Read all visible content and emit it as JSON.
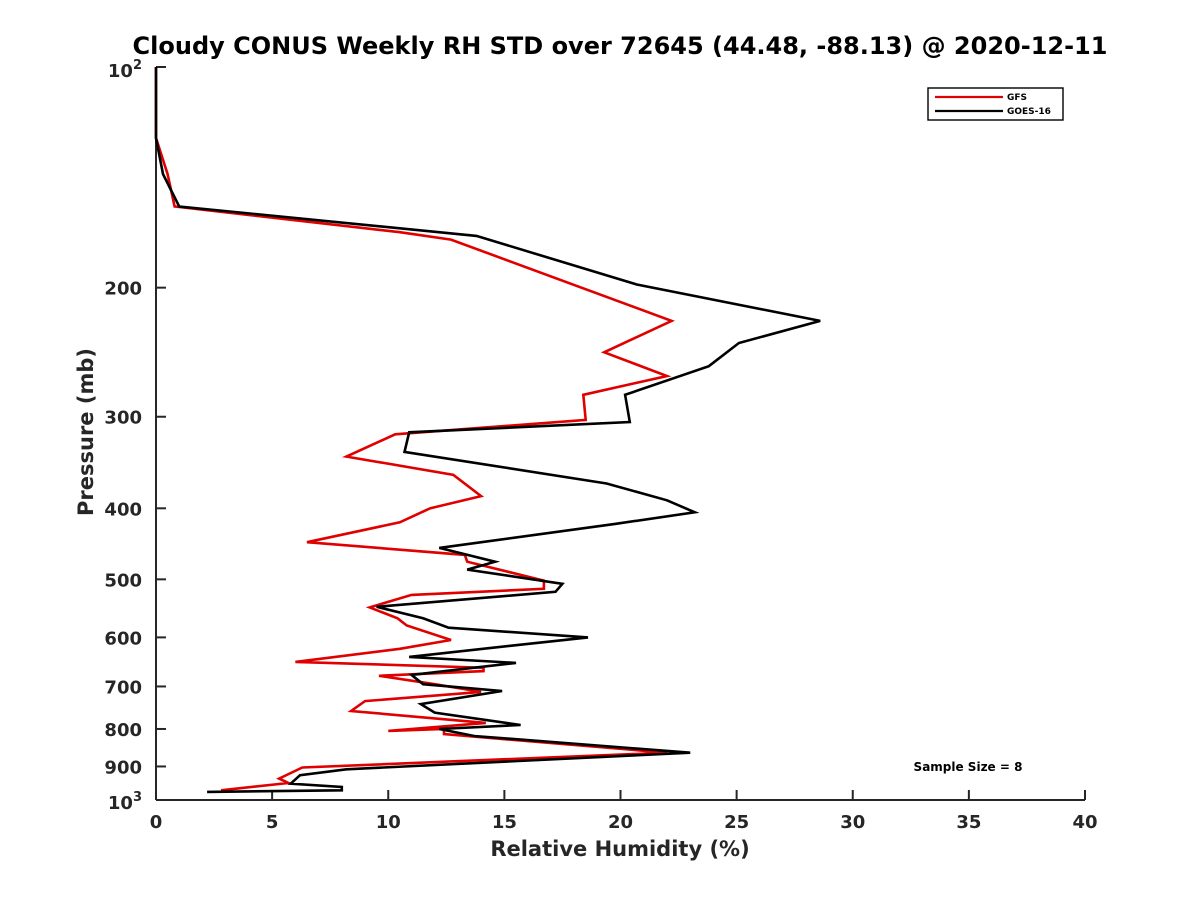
{
  "chart_data": {
    "type": "line",
    "title": "Cloudy CONUS Weekly RH STD over 72645 (44.48, -88.13) @ 2020-12-11",
    "xlabel": "Relative Humidity (%)",
    "ylabel": "Pressure (mb)",
    "xlim": [
      0,
      40
    ],
    "ylim": [
      100,
      1000
    ],
    "y_scale": "log",
    "y_reversed": true,
    "x_ticks": [
      "0",
      "5",
      "10",
      "15",
      "20",
      "25",
      "30",
      "35",
      "40"
    ],
    "x_tick_values": [
      0,
      5,
      10,
      15,
      20,
      25,
      30,
      35,
      40
    ],
    "y_ticks": [
      "200",
      "300",
      "400",
      "500",
      "600",
      "700",
      "800",
      "900"
    ],
    "y_tick_values": [
      200,
      300,
      400,
      500,
      600,
      700,
      800,
      900
    ],
    "y_top_label_base": "10",
    "y_top_label_exp": "2",
    "y_bottom_label_base": "10",
    "y_bottom_label_exp": "3",
    "grid": false,
    "legend_position": "top-right",
    "annotation": "Sample Size = 8",
    "series": [
      {
        "name": "GFS",
        "color": "#e00000",
        "points": [
          [
            0,
            100
          ],
          [
            0,
            125
          ],
          [
            0.5,
            140
          ],
          [
            0.8,
            155
          ],
          [
            10.5,
            168
          ],
          [
            12.7,
            172
          ],
          [
            22.2,
            222
          ],
          [
            19.3,
            245
          ],
          [
            22.0,
            264
          ],
          [
            18.4,
            280
          ],
          [
            18.5,
            303
          ],
          [
            10.3,
            317
          ],
          [
            8.2,
            340
          ],
          [
            12.8,
            360
          ],
          [
            14.0,
            385
          ],
          [
            11.8,
            400
          ],
          [
            10.5,
            418
          ],
          [
            6.5,
            445
          ],
          [
            13.3,
            463
          ],
          [
            13.4,
            473
          ],
          [
            16.7,
            502
          ],
          [
            16.7,
            515
          ],
          [
            11.0,
            525
          ],
          [
            9.2,
            546
          ],
          [
            10.4,
            565
          ],
          [
            10.8,
            578
          ],
          [
            12.7,
            605
          ],
          [
            10.5,
            622
          ],
          [
            6.0,
            648
          ],
          [
            14.1,
            660
          ],
          [
            14.1,
            667
          ],
          [
            9.6,
            677
          ],
          [
            12.0,
            695
          ],
          [
            14.0,
            712
          ],
          [
            9.0,
            733
          ],
          [
            8.4,
            756
          ],
          [
            14.2,
            785
          ],
          [
            10.0,
            805
          ],
          [
            12.4,
            800
          ],
          [
            12.4,
            813
          ],
          [
            22.0,
            862
          ],
          [
            6.3,
            903
          ],
          [
            5.3,
            935
          ],
          [
            5.7,
            948
          ],
          [
            2.8,
            970
          ]
        ]
      },
      {
        "name": "GOES-16",
        "color": "#000000",
        "points": [
          [
            0,
            100
          ],
          [
            0,
            125
          ],
          [
            0.3,
            140
          ],
          [
            1.0,
            155
          ],
          [
            13.8,
            170
          ],
          [
            20.7,
            198
          ],
          [
            28.6,
            222
          ],
          [
            25.1,
            238
          ],
          [
            23.8,
            256
          ],
          [
            20.2,
            280
          ],
          [
            20.4,
            305
          ],
          [
            10.9,
            315
          ],
          [
            10.7,
            335
          ],
          [
            19.4,
            370
          ],
          [
            22.0,
            390
          ],
          [
            23.2,
            405
          ],
          [
            19.8,
            420
          ],
          [
            12.2,
            453
          ],
          [
            14.6,
            473
          ],
          [
            13.4,
            485
          ],
          [
            17.5,
            507
          ],
          [
            17.2,
            520
          ],
          [
            9.5,
            545
          ],
          [
            11.5,
            565
          ],
          [
            12.6,
            582
          ],
          [
            18.6,
            600
          ],
          [
            15.5,
            615
          ],
          [
            10.9,
            638
          ],
          [
            15.5,
            650
          ],
          [
            11.0,
            675
          ],
          [
            11.5,
            695
          ],
          [
            14.9,
            710
          ],
          [
            11.4,
            740
          ],
          [
            12.0,
            760
          ],
          [
            15.7,
            790
          ],
          [
            12.2,
            800
          ],
          [
            13.7,
            818
          ],
          [
            23.0,
            862
          ],
          [
            8.2,
            908
          ],
          [
            6.2,
            925
          ],
          [
            5.8,
            950
          ],
          [
            8.0,
            960
          ],
          [
            8.0,
            970
          ],
          [
            2.2,
            975
          ]
        ]
      }
    ]
  }
}
